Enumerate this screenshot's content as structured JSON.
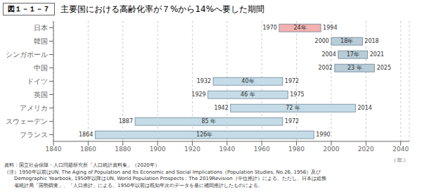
{
  "chart_data": {
    "type": "bar",
    "orientation": "horizontal",
    "title": "主要国における高齢化率が７%から14%へ要した期間",
    "subtitle": "図１－１－７",
    "xlabel": "（年）",
    "categories": [
      "日本",
      "韓国",
      "シンガポール",
      "中国",
      "ドイツ",
      "英国",
      "アメリカ",
      "スウェーデン",
      "フランス"
    ],
    "values": [
      [
        1970,
        1994
      ],
      [
        2000,
        2018
      ],
      [
        2004,
        2021
      ],
      [
        2002,
        2025
      ],
      [
        1932,
        1972
      ],
      [
        1929,
        1975
      ],
      [
        1942,
        2014
      ],
      [
        1887,
        1972
      ],
      [
        1864,
        1990
      ]
    ],
    "span_labels": [
      "24年",
      "18年",
      "17年",
      "23 年",
      "40年",
      "46 年",
      "72 年",
      "85 年",
      "126年"
    ],
    "colors": [
      "#f2b0b0",
      "#b8ccd8",
      "#b8ccd8",
      "#b8ccd8",
      "#c5dce8",
      "#c5dce8",
      "#c5dce8",
      "#c5dce8",
      "#c5dce8"
    ],
    "data_labels": true,
    "grid": true,
    "xlim": [
      1840,
      2045
    ],
    "xticks": [
      1840,
      1860,
      1880,
      1900,
      1920,
      1940,
      1960,
      1980,
      2000,
      2020,
      2040
    ],
    "annotations": [
      "資料：国立社会保障・人口問題研究所「人口統計資料集」（2020年）",
      "（注）1950年以前はUN, The Aging of Population and Its Economic and Social Implications（Population Studies, No.26, 1956）及び",
      "　　Demographic Yearbook, 1950年以降はUN, World Population Prospects：The 2019Revision（中位推計）による。ただし、日本は総務",
      "　　省統計局「国勢調査」、「人口推計」による。1950年以前は既知年次のデータを基に補間推計したものによる。"
    ]
  }
}
